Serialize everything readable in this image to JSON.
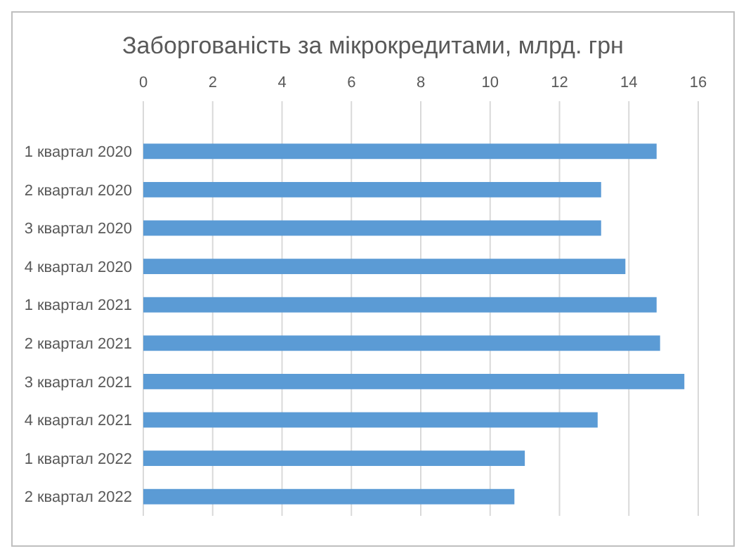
{
  "chart_data": {
    "type": "bar",
    "orientation": "horizontal",
    "title": "Заборгованість за мікрокредитами, млрд. грн",
    "categories": [
      "1 квартал 2020",
      "2 квартал 2020",
      "3 квартал 2020",
      "4 квартал 2020",
      "1 квартал 2021",
      "2 квартал 2021",
      "3 квартал 2021",
      "4 квартал 2021",
      "1 квартал 2022",
      "2 квартал 2022"
    ],
    "values": [
      14.8,
      13.2,
      13.2,
      13.9,
      14.8,
      14.9,
      15.6,
      13.1,
      11.0,
      10.7
    ],
    "color": "#5b9bd5",
    "xlim": [
      0,
      16
    ],
    "xticks": [
      0,
      2,
      4,
      6,
      8,
      10,
      12,
      14,
      16
    ],
    "grid": "x"
  }
}
